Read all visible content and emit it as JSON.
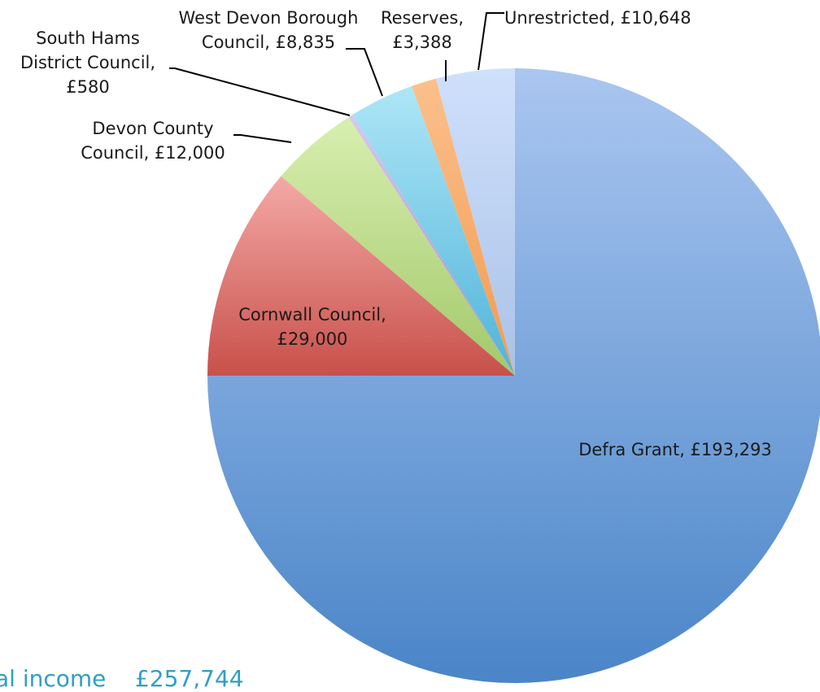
{
  "chart_data": {
    "type": "pie",
    "title": "",
    "start_angle_deg": 90,
    "direction": "clockwise",
    "slices": [
      {
        "label": "Defra Grant",
        "value": 193293,
        "text": "Defra Grant, £193,293",
        "color_top": "#aac6f0",
        "color_bottom": "#4a85c8"
      },
      {
        "label": "Cornwall Council",
        "value": 29000,
        "text": "Cornwall Council, £29,000",
        "color_top": "#f4a9a6",
        "color_bottom": "#c8504a"
      },
      {
        "label": "Devon County Council",
        "value": 12000,
        "text": "Devon County Council, £12,000",
        "color_top": "#d8efb0",
        "color_bottom": "#a3c86a"
      },
      {
        "label": "South Hams District Council",
        "value": 580,
        "text": "South Hams District Council, £580",
        "color_top": "#d7c8ee",
        "color_bottom": "#a48cc8"
      },
      {
        "label": "West Devon Borough Council",
        "value": 8835,
        "text": "West Devon Borough Council, £8,835",
        "color_top": "#aee6f7",
        "color_bottom": "#4fb3d9"
      },
      {
        "label": "Reserves",
        "value": 3388,
        "text": "Reserves, £3,388",
        "color_top": "#fbc08c",
        "color_bottom": "#f39a4f"
      },
      {
        "label": "Unrestricted",
        "value": 10648,
        "text": "Unrestricted, £10,648",
        "color_top": "#cfe0fb",
        "color_bottom": "#aac2e8"
      }
    ]
  },
  "labels": {
    "defra": [
      "Defra Grant, £193,293"
    ],
    "cornwall": [
      "Cornwall Council,",
      "£29,000"
    ],
    "devon": [
      "Devon County",
      "Council, £12,000"
    ],
    "southhams": [
      "South Hams",
      "District Council,",
      "£580"
    ],
    "westdevon": [
      "West Devon Borough",
      "Council, £8,835"
    ],
    "reserves": [
      "Reserves,",
      "£3,388"
    ],
    "unrestricted": [
      "Unrestricted, £10,648"
    ]
  },
  "footer": {
    "text": "al income    £257,744"
  }
}
